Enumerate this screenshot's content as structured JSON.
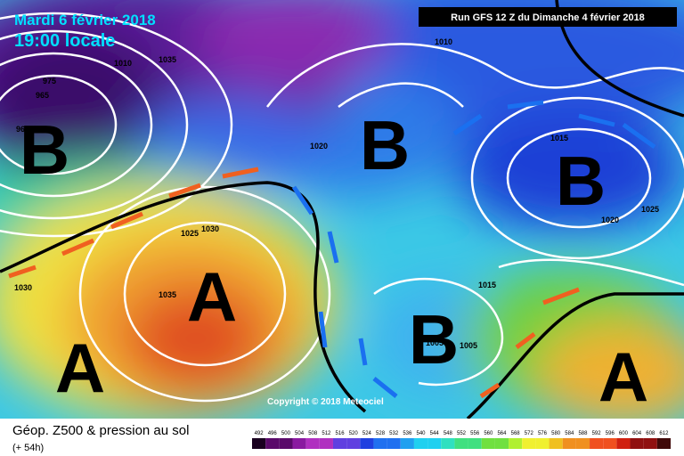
{
  "header": {
    "date": "Mardi 6 février 2018",
    "time": "19:00 locale",
    "run": "Run GFS 12 Z du Dimanche 4 février 2018"
  },
  "centers": [
    "B",
    "A",
    "B",
    "B",
    "A",
    "B",
    "A"
  ],
  "isobars": [
    "1010",
    "1035",
    "975",
    "965",
    "960",
    "1020",
    "1015",
    "1020",
    "1025",
    "1025",
    "1030",
    "1035",
    "1030",
    "1015",
    "1005",
    "1005",
    "1010"
  ],
  "copyright": "Copyright © 2018 Meteociel",
  "footer": {
    "title": "Géop. Z500 & pression au sol",
    "lead": "(+ 54h)"
  },
  "scale": [
    492,
    496,
    500,
    504,
    508,
    512,
    516,
    520,
    524,
    528,
    532,
    536,
    540,
    544,
    548,
    552,
    556,
    560,
    564,
    568,
    572,
    576,
    580,
    584,
    588,
    592,
    596,
    600,
    604,
    608,
    612
  ]
}
